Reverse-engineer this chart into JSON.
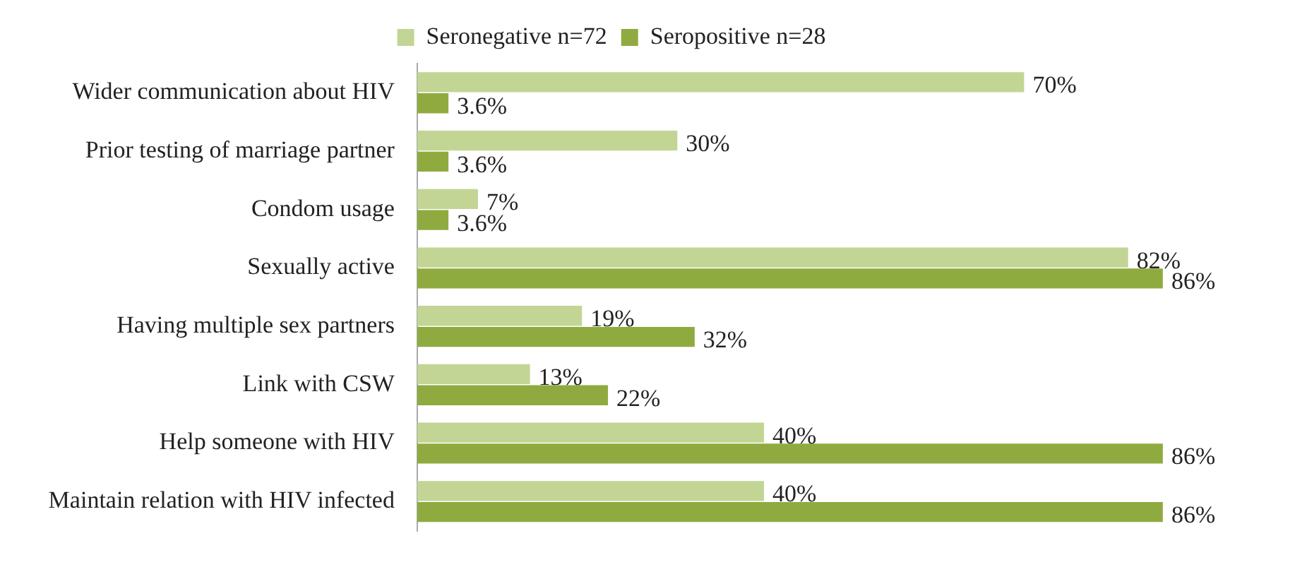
{
  "chart_data": {
    "type": "bar",
    "orientation": "horizontal",
    "categories": [
      "Wider communication about HIV",
      "Prior testing of marriage partner",
      "Condom usage",
      "Sexually active",
      "Having multiple sex partners",
      "Link with CSW",
      "Help someone with HIV",
      "Maintain relation with HIV infected"
    ],
    "series": [
      {
        "name": "Seronegative n=72",
        "color": "#c2d594",
        "values": [
          70,
          30,
          7,
          82,
          19,
          13,
          40,
          40
        ],
        "value_labels": [
          "70%",
          "30%",
          "7%",
          "82%",
          "19%",
          "13%",
          "40%",
          "40%"
        ]
      },
      {
        "name": "Seropositive n=28",
        "color": "#8fab3f",
        "values": [
          3.6,
          3.6,
          3.6,
          86,
          32,
          22,
          86,
          86
        ],
        "value_labels": [
          "3.6%",
          "3.6%",
          "3.6%",
          "86%",
          "32%",
          "22%",
          "86%",
          "86%"
        ]
      }
    ],
    "legend": "top"
  }
}
